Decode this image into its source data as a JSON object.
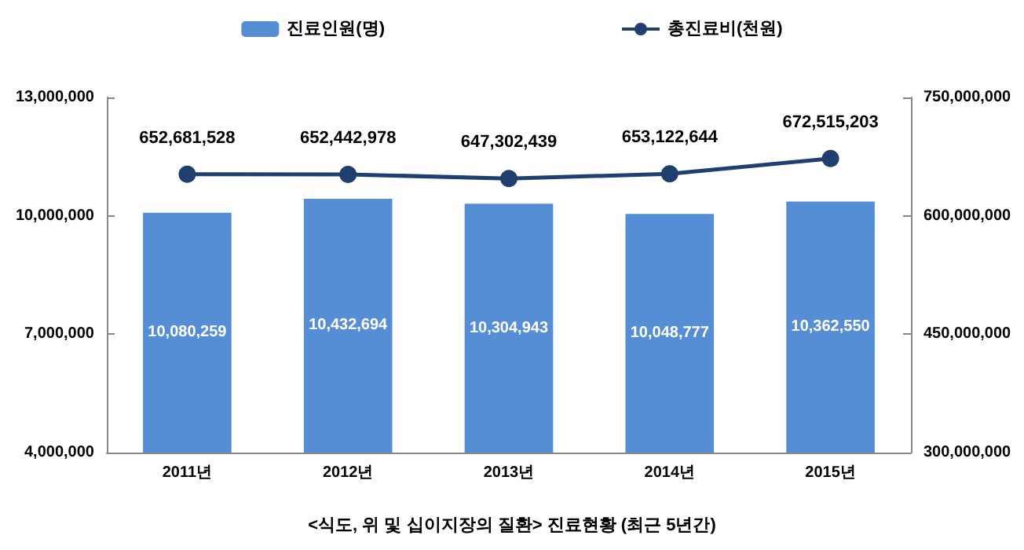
{
  "chart_data": {
    "type": "bar",
    "categories": [
      "2011년",
      "2012년",
      "2013년",
      "2014년",
      "2015년"
    ],
    "series": [
      {
        "name": "진료인원(명)",
        "color": "#558ed5",
        "values": [
          10080259,
          10432694,
          10304943,
          10048777,
          10362550
        ],
        "value_labels": [
          "10,080,259",
          "10,432,694",
          "10,304,943",
          "10,048,777",
          "10,362,550"
        ]
      },
      {
        "name": "총진료비(천원)",
        "type": "line",
        "axis": "y2",
        "color": "#1f3f6e",
        "values": [
          652681528,
          652442978,
          647302439,
          653122644,
          672515203
        ],
        "value_labels": [
          "652,681,528",
          "652,442,978",
          "647,302,439",
          "653,122,644",
          "672,515,203"
        ]
      }
    ],
    "ylim": [
      4000000,
      13000000
    ],
    "yticks": [
      {
        "value": 4000000,
        "label": "4,000,000"
      },
      {
        "value": 7000000,
        "label": "7,000,000"
      },
      {
        "value": 10000000,
        "label": "10,000,000"
      },
      {
        "value": 13000000,
        "label": "13,000,000"
      }
    ],
    "y2lim": [
      300000000,
      750000000
    ],
    "y2ticks": [
      {
        "value": 300000000,
        "label": "300,000,000"
      },
      {
        "value": 450000000,
        "label": "450,000,000"
      },
      {
        "value": 600000000,
        "label": "600,000,000"
      },
      {
        "value": 750000000,
        "label": "750,000,000"
      }
    ],
    "grid": false,
    "legend": "top",
    "marker": "circle",
    "annotations": [
      "<식도, 위 및 십이지장의 질환> 진료현황 (최근 5년간)"
    ]
  }
}
